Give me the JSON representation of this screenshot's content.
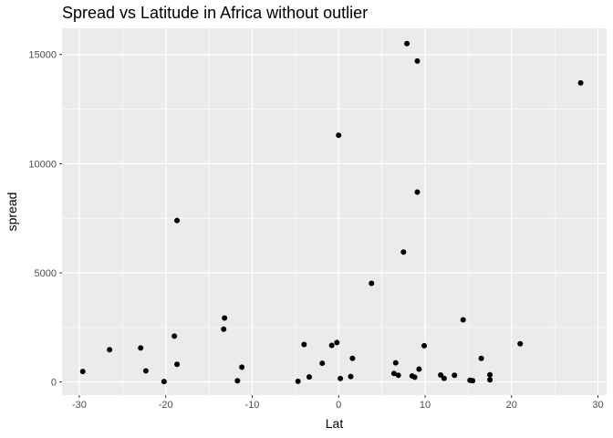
{
  "chart_data": {
    "type": "scatter",
    "title": "Spread vs Latitude in Africa without outlier",
    "xlabel": "Lat",
    "ylabel": "spread",
    "xlim": [
      -32,
      31
    ],
    "ylim": [
      -600,
      16200
    ],
    "x_ticks": [
      -30,
      -20,
      -10,
      0,
      10,
      20,
      30
    ],
    "x_tick_labels": [
      "-30",
      "-20",
      "-10",
      "0",
      "10",
      "20",
      "30"
    ],
    "y_ticks": [
      0,
      5000,
      10000,
      15000
    ],
    "y_tick_labels": [
      "0",
      "5000",
      "10000",
      "15000"
    ],
    "grid": true,
    "background_color": "#ebebeb",
    "grid_color": "#ffffff",
    "point_color": "#000000",
    "points": [
      {
        "x": -29.6,
        "y": 480
      },
      {
        "x": -26.5,
        "y": 1480
      },
      {
        "x": -22.9,
        "y": 1560
      },
      {
        "x": -22.3,
        "y": 510
      },
      {
        "x": -20.2,
        "y": 20
      },
      {
        "x": -19.0,
        "y": 2100
      },
      {
        "x": -18.7,
        "y": 7400
      },
      {
        "x": -18.7,
        "y": 810
      },
      {
        "x": -13.3,
        "y": 2420
      },
      {
        "x": -13.2,
        "y": 2930
      },
      {
        "x": -11.7,
        "y": 60
      },
      {
        "x": -11.2,
        "y": 680
      },
      {
        "x": -4.7,
        "y": 30
      },
      {
        "x": -4.0,
        "y": 1720
      },
      {
        "x": -3.4,
        "y": 230
      },
      {
        "x": -1.9,
        "y": 860
      },
      {
        "x": -0.8,
        "y": 1680
      },
      {
        "x": -0.2,
        "y": 1810
      },
      {
        "x": 0.0,
        "y": 11300
      },
      {
        "x": 0.2,
        "y": 160
      },
      {
        "x": 1.4,
        "y": 250
      },
      {
        "x": 1.6,
        "y": 1080
      },
      {
        "x": 3.8,
        "y": 4520
      },
      {
        "x": 6.4,
        "y": 390
      },
      {
        "x": 6.6,
        "y": 880
      },
      {
        "x": 6.9,
        "y": 310
      },
      {
        "x": 7.5,
        "y": 5950
      },
      {
        "x": 7.9,
        "y": 15500
      },
      {
        "x": 8.5,
        "y": 280
      },
      {
        "x": 8.8,
        "y": 220
      },
      {
        "x": 9.1,
        "y": 14700
      },
      {
        "x": 9.1,
        "y": 8700
      },
      {
        "x": 9.3,
        "y": 590
      },
      {
        "x": 9.9,
        "y": 1660
      },
      {
        "x": 11.8,
        "y": 320
      },
      {
        "x": 12.2,
        "y": 170
      },
      {
        "x": 13.4,
        "y": 310
      },
      {
        "x": 14.4,
        "y": 2850
      },
      {
        "x": 15.2,
        "y": 80
      },
      {
        "x": 15.5,
        "y": 60
      },
      {
        "x": 16.5,
        "y": 1080
      },
      {
        "x": 17.5,
        "y": 330
      },
      {
        "x": 17.5,
        "y": 100
      },
      {
        "x": 21.0,
        "y": 1750
      },
      {
        "x": 28.0,
        "y": 13700
      }
    ]
  }
}
